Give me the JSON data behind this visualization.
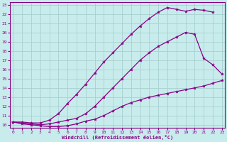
{
  "xlabel": "Windchill (Refroidissement éolien,°C)",
  "bg_color": "#c8ecec",
  "grid_color": "#a8d0d0",
  "line_color": "#880088",
  "xlim": [
    -0.3,
    23.3
  ],
  "ylim": [
    9.7,
    23.3
  ],
  "xticks": [
    0,
    1,
    2,
    3,
    4,
    5,
    6,
    7,
    8,
    9,
    10,
    11,
    12,
    13,
    14,
    15,
    16,
    17,
    18,
    19,
    20,
    21,
    22,
    23
  ],
  "yticks": [
    10,
    11,
    12,
    13,
    14,
    15,
    16,
    17,
    18,
    19,
    20,
    21,
    22,
    23
  ],
  "line_top_x": [
    0,
    1,
    2,
    3,
    4,
    5,
    6,
    7,
    8,
    9,
    10,
    11,
    12,
    13,
    14,
    15,
    16,
    17,
    18,
    19,
    20,
    21,
    22
  ],
  "line_top_y": [
    10.3,
    10.3,
    10.2,
    10.2,
    10.5,
    11.2,
    12.3,
    13.3,
    14.4,
    15.6,
    16.8,
    17.8,
    18.8,
    19.8,
    20.7,
    21.5,
    22.2,
    22.7,
    22.5,
    22.3,
    22.5,
    22.4,
    22.2
  ],
  "line_mid_x": [
    0,
    1,
    2,
    3,
    4,
    5,
    6,
    7,
    8,
    9,
    10,
    11,
    12,
    13,
    14,
    15,
    16,
    17,
    18,
    19,
    20,
    21,
    22,
    23
  ],
  "line_mid_y": [
    10.3,
    10.2,
    10.1,
    10.0,
    10.1,
    10.3,
    10.5,
    10.7,
    11.2,
    12.0,
    13.0,
    14.0,
    15.0,
    16.0,
    17.0,
    17.8,
    18.5,
    19.0,
    19.5,
    20.0,
    19.8,
    17.2,
    16.5,
    15.5
  ],
  "line_bot_x": [
    0,
    1,
    2,
    3,
    4,
    5,
    6,
    7,
    8,
    9,
    10,
    11,
    12,
    13,
    14,
    15,
    16,
    17,
    18,
    19,
    20,
    21,
    22,
    23
  ],
  "line_bot_y": [
    10.3,
    10.1,
    10.0,
    9.9,
    9.8,
    9.8,
    9.9,
    10.1,
    10.4,
    10.6,
    11.0,
    11.5,
    12.0,
    12.4,
    12.7,
    13.0,
    13.2,
    13.4,
    13.6,
    13.8,
    14.0,
    14.2,
    14.5,
    14.8
  ]
}
